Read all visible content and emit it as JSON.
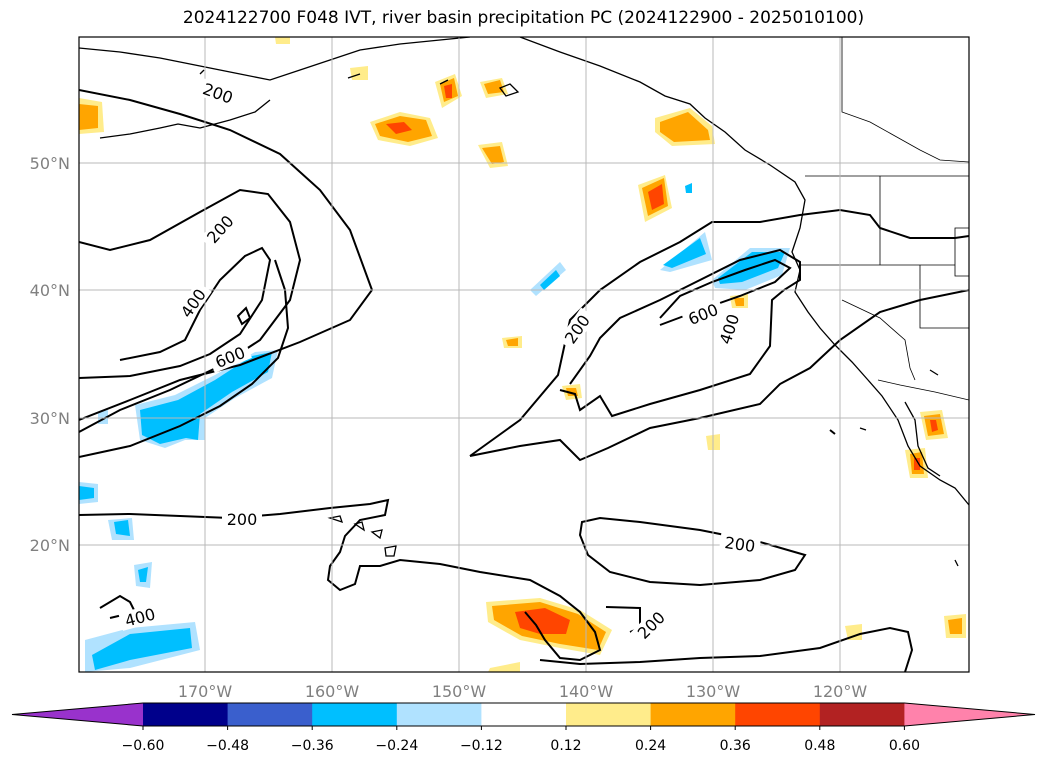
{
  "title": "2024122700 F048 IVT, river basin precipitation PC (2024122900 - 2025010100)",
  "latitude_labels": [
    "50°N",
    "40°N",
    "30°N",
    "20°N"
  ],
  "longitude_labels": [
    "170°W",
    "160°W",
    "150°W",
    "140°W",
    "130°W",
    "120°W"
  ],
  "contour_labels": {
    "a": "200",
    "b": "200",
    "c": "400",
    "d": "600",
    "e": "200",
    "f": "400",
    "g": "200",
    "h": "600",
    "i": "400",
    "j": "200",
    "k": "200"
  },
  "colorbar": {
    "ticks": [
      "−0.60",
      "−0.48",
      "−0.36",
      "−0.24",
      "−0.12",
      "0.12",
      "0.24",
      "0.36",
      "0.48",
      "0.60"
    ],
    "colors": [
      "#9932CC",
      "#00008B",
      "#3A5FCD",
      "#00BFFF",
      "#B0E2FF",
      "#FFFFFF",
      "#FFEC8B",
      "#FFA500",
      "#FF4500",
      "#B22222",
      "#FF82AB"
    ]
  }
}
